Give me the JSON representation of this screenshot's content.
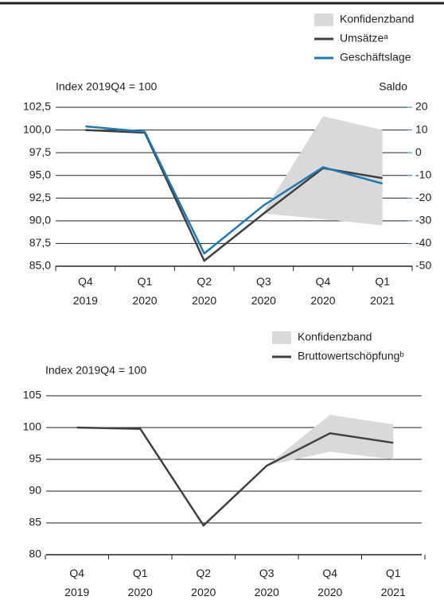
{
  "chart_data": [
    {
      "type": "line",
      "ylabel": "Index 2019Q4 = 100",
      "y2label": "Saldo",
      "categories": [
        "Q4 2019",
        "Q1 2020",
        "Q2 2020",
        "Q3 2020",
        "Q4 2020",
        "Q1 2021"
      ],
      "band": {
        "name": "Konfidenzband",
        "color": "#d9d9d9",
        "upper": [
          null,
          null,
          null,
          91.0,
          101.5,
          100.0
        ],
        "lower": [
          null,
          null,
          null,
          90.8,
          90.2,
          89.5
        ]
      },
      "series": [
        {
          "name": "Umsätzeᵃ",
          "color": "#404040",
          "values": [
            100.0,
            99.7,
            85.6,
            90.8,
            95.8,
            94.7
          ]
        },
        {
          "name": "Geschäftslage",
          "color": "#1f78b4",
          "axis": "y2",
          "values": [
            11.6,
            9.2,
            -44.4,
            -23.2,
            -6.4,
            -13.6
          ]
        }
      ],
      "ylim": [
        85,
        102.5
      ],
      "yticks": [
        {
          "value": 85,
          "label": "85,0"
        },
        {
          "value": 87.5,
          "label": "87,5"
        },
        {
          "value": 90,
          "label": "90,0"
        },
        {
          "value": 92.5,
          "label": "92,5"
        },
        {
          "value": 95,
          "label": "95,0"
        },
        {
          "value": 97.5,
          "label": "97,5"
        },
        {
          "value": 100,
          "label": "100,0"
        },
        {
          "value": 102.5,
          "label": "102,5"
        }
      ],
      "y2lim": [
        -50,
        20
      ],
      "y2ticks": [
        -50,
        -40,
        -30,
        -20,
        -10,
        0,
        10,
        20
      ],
      "grid": true
    },
    {
      "type": "line",
      "ylabel": "Index 2019Q4 = 100",
      "categories": [
        "Q4 2019",
        "Q1 2020",
        "Q2 2020",
        "Q3 2020",
        "Q4 2020",
        "Q1 2021"
      ],
      "band": {
        "name": "Konfidenzband",
        "color": "#d9d9d9",
        "upper": [
          null,
          null,
          null,
          94.0,
          102.0,
          100.5
        ],
        "lower": [
          null,
          null,
          null,
          94.0,
          96.2,
          95.0
        ]
      },
      "series": [
        {
          "name": "Bruttowertschöpfungᵇ",
          "color": "#404040",
          "values": [
            100.0,
            99.8,
            84.6,
            94.0,
            99.1,
            97.6
          ]
        }
      ],
      "ylim": [
        80,
        105
      ],
      "yticks": [
        80,
        85,
        90,
        95,
        100,
        105
      ],
      "grid": true
    }
  ]
}
